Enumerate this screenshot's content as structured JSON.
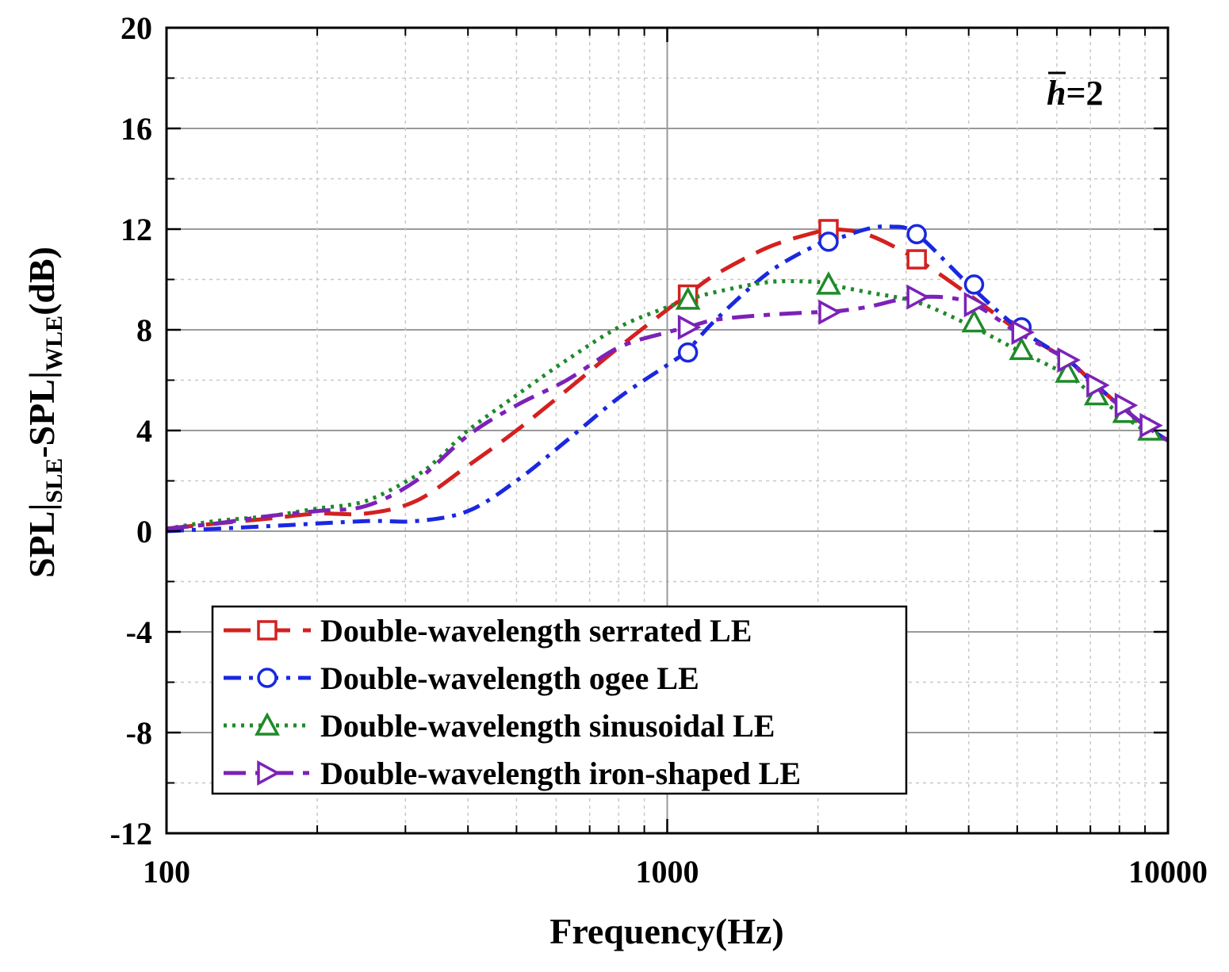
{
  "chart_data": {
    "type": "line",
    "xlabel": "Frequency(Hz)",
    "ylabel": {
      "main1": "SPL|",
      "sub1": "SLE",
      "main2": "-SPL|",
      "sub2": "WLE",
      "main3": "(dB)"
    },
    "xscale": "log",
    "xlim": [
      100,
      10000
    ],
    "ylim": [
      -12,
      20
    ],
    "xticks": [
      100,
      1000,
      10000
    ],
    "xtick_labels": [
      "100",
      "1000",
      "10000"
    ],
    "yticks": [
      -12,
      -8,
      -4,
      0,
      4,
      8,
      12,
      16,
      20
    ],
    "ytick_labels": [
      "-12",
      "-8",
      "-4",
      "0",
      "4",
      "8",
      "12",
      "16",
      "20"
    ],
    "grid": true,
    "legend_position": "lower-center",
    "annotation": {
      "var": "h",
      "rest": "=2"
    },
    "series": [
      {
        "name": "Double-wavelength serrated LE",
        "color": "#d42020",
        "dash": "long-dash",
        "marker": "square",
        "x": [
          100,
          125,
          160,
          200,
          250,
          315,
          400,
          500,
          630,
          800,
          1000,
          1100,
          1250,
          1600,
          2000,
          2100,
          2500,
          3150,
          4000,
          5000,
          6300,
          7000,
          8000,
          9000,
          10000
        ],
        "y": [
          0.1,
          0.3,
          0.5,
          0.7,
          0.7,
          1.2,
          2.6,
          4.0,
          5.6,
          7.3,
          8.8,
          9.4,
          10.2,
          11.3,
          11.9,
          12.0,
          11.8,
          10.8,
          9.4,
          8.0,
          6.8,
          6.0,
          5.0,
          4.2,
          3.6
        ],
        "marker_x": [
          1100,
          2100,
          3150
        ],
        "marker_y": [
          9.4,
          12.0,
          10.8
        ]
      },
      {
        "name": "Double-wavelength ogee LE",
        "color": "#1a28e0",
        "dash": "dash-dot",
        "marker": "circle",
        "x": [
          100,
          160,
          250,
          315,
          400,
          500,
          630,
          800,
          1000,
          1100,
          1250,
          1600,
          2000,
          2100,
          2500,
          2800,
          3150,
          4000,
          5000,
          6300,
          7000,
          8000,
          9000,
          10000
        ],
        "y": [
          0.0,
          0.2,
          0.4,
          0.4,
          0.8,
          2.0,
          3.6,
          5.3,
          6.6,
          7.2,
          8.4,
          10.3,
          11.4,
          11.5,
          12.0,
          12.1,
          11.8,
          9.8,
          8.1,
          6.8,
          6.0,
          5.0,
          4.2,
          3.6
        ],
        "marker_x": [
          1100,
          2100,
          3150,
          4100,
          5100
        ],
        "marker_y": [
          7.1,
          11.5,
          11.8,
          9.8,
          8.1
        ]
      },
      {
        "name": "Double-wavelength sinusoidal LE",
        "color": "#1f8a2a",
        "dash": "dotted",
        "marker": "triangle-up",
        "x": [
          100,
          125,
          160,
          200,
          250,
          315,
          350,
          400,
          500,
          630,
          800,
          1000,
          1100,
          1250,
          1600,
          2000,
          2100,
          2500,
          3150,
          4000,
          5000,
          6300,
          7000,
          8000,
          9000,
          10000
        ],
        "y": [
          0.1,
          0.4,
          0.6,
          0.9,
          1.2,
          2.2,
          2.9,
          4.0,
          5.4,
          6.8,
          8.1,
          8.9,
          9.2,
          9.5,
          9.9,
          9.9,
          9.8,
          9.5,
          9.1,
          8.2,
          7.2,
          6.2,
          5.5,
          4.7,
          4.0,
          3.6
        ],
        "marker_x": [
          1100,
          2100,
          4100,
          5100,
          6300,
          7200,
          8200,
          9200
        ],
        "marker_y": [
          9.2,
          9.8,
          8.3,
          7.2,
          6.3,
          5.4,
          4.7,
          4.0
        ]
      },
      {
        "name": "Double-wavelength iron-shaped LE",
        "color": "#7b22b8",
        "dash": "dash-dot-long",
        "marker": "triangle-right",
        "x": [
          100,
          125,
          160,
          200,
          250,
          315,
          400,
          500,
          630,
          800,
          1000,
          1100,
          1250,
          1600,
          2000,
          2100,
          2500,
          3150,
          4000,
          5000,
          6300,
          7000,
          8000,
          9000,
          10000
        ],
        "y": [
          0.1,
          0.3,
          0.6,
          0.8,
          1.0,
          2.0,
          3.8,
          5.0,
          6.0,
          7.3,
          7.9,
          8.1,
          8.4,
          8.6,
          8.7,
          8.7,
          8.9,
          9.3,
          9.1,
          7.9,
          6.8,
          5.9,
          5.0,
          4.2,
          3.6
        ],
        "marker_x": [
          1100,
          2100,
          3150,
          4100,
          5100,
          6300,
          7200,
          8200,
          9200
        ],
        "marker_y": [
          8.1,
          8.7,
          9.3,
          9.0,
          7.9,
          6.8,
          5.8,
          5.0,
          4.2
        ]
      }
    ]
  }
}
